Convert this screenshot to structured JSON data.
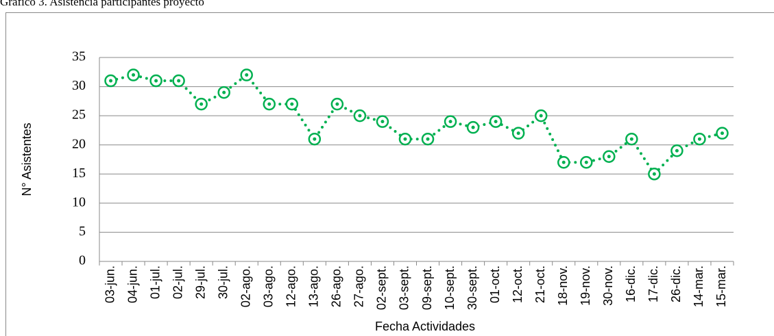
{
  "chart_data": {
    "type": "line",
    "title": "Gráfico 3. Asistencia participantes proyecto",
    "x_label": "Fecha Actividades",
    "y_label": "N° Asistentes",
    "categories": [
      "03-jun.",
      "04-jun.",
      "01-jul.",
      "02-jul.",
      "29-jul.",
      "30-jul.",
      "02-ago.",
      "03-ago.",
      "12-ago.",
      "13-ago.",
      "26-ago.",
      "27-ago.",
      "02-sept.",
      "03-sept.",
      "09-sept.",
      "10-sept.",
      "30-sept.",
      "01-oct.",
      "12-oct.",
      "21-oct.",
      "18-nov.",
      "19-nov.",
      "30-nov.",
      "16-dic.",
      "17-dic.",
      "26-dic.",
      "14-mar.",
      "15-mar."
    ],
    "values": [
      31,
      32,
      31,
      31,
      27,
      29,
      32,
      27,
      27,
      21,
      27,
      25,
      24,
      21,
      21,
      24,
      23,
      24,
      22,
      25,
      17,
      17,
      18,
      21,
      15,
      19,
      21,
      22
    ],
    "color": "#00b050",
    "ylim": [
      0,
      35
    ],
    "yticks": [
      0,
      5,
      10,
      15,
      20,
      25,
      30,
      35
    ],
    "grid": true
  }
}
